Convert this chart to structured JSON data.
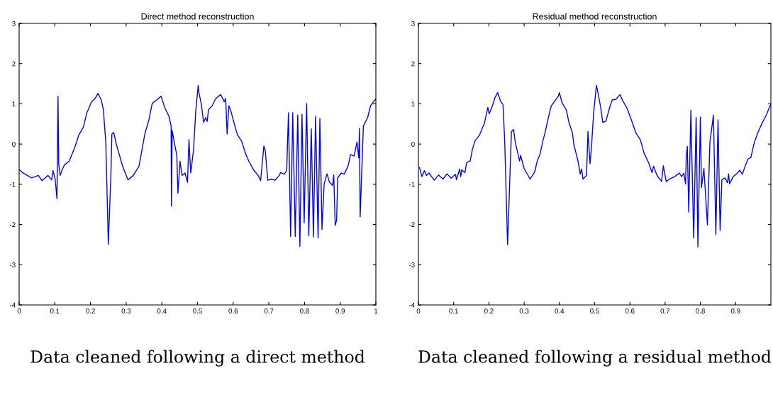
{
  "chart_data": [
    {
      "type": "line",
      "title": "Direct method reconstruction",
      "xlim": [
        0,
        1
      ],
      "ylim": [
        -4,
        3
      ],
      "xticks": [
        0,
        0.1,
        0.2,
        0.3,
        0.4,
        0.5,
        0.6,
        0.7,
        0.8,
        0.9,
        1
      ],
      "yticks": [
        -4,
        -3,
        -2,
        -1,
        0,
        1,
        2,
        3
      ],
      "grid": false,
      "legend": false,
      "annotations": [
        "Data cleaned following a direct method"
      ],
      "series": [
        {
          "color": "#0000ff",
          "x": [
            0.001,
            0.011,
            0.035,
            0.054,
            0.064,
            0.081,
            0.091,
            0.095,
            0.101,
            0.106,
            0.109,
            0.111,
            0.115,
            0.122,
            0.127,
            0.14,
            0.147,
            0.157,
            0.167,
            0.18,
            0.19,
            0.203,
            0.213,
            0.221,
            0.23,
            0.236,
            0.243,
            0.25,
            0.257,
            0.26,
            0.265,
            0.273,
            0.29,
            0.305,
            0.32,
            0.336,
            0.353,
            0.363,
            0.373,
            0.386,
            0.398,
            0.409,
            0.42,
            0.426,
            0.427,
            0.429,
            0.435,
            0.442,
            0.445,
            0.451,
            0.457,
            0.465,
            0.472,
            0.476,
            0.481,
            0.489,
            0.495,
            0.502,
            0.504,
            0.511,
            0.517,
            0.523,
            0.527,
            0.531,
            0.541,
            0.551,
            0.565,
            0.575,
            0.579,
            0.583,
            0.588,
            0.594,
            0.601,
            0.612,
            0.624,
            0.634,
            0.644,
            0.657,
            0.67,
            0.677,
            0.686,
            0.69,
            0.697,
            0.707,
            0.717,
            0.729,
            0.733,
            0.743,
            0.75,
            0.755,
            0.761,
            0.767,
            0.774,
            0.781,
            0.787,
            0.793,
            0.799,
            0.806,
            0.812,
            0.819,
            0.825,
            0.831,
            0.838,
            0.843,
            0.849,
            0.855,
            0.863,
            0.87,
            0.879,
            0.882,
            0.886,
            0.89,
            0.893,
            0.903,
            0.911,
            0.922,
            0.929,
            0.939,
            0.947,
            0.952,
            0.954,
            0.956,
            0.965,
            0.977,
            0.985,
            0.995,
            1.0
          ],
          "values": [
            -0.64,
            -0.72,
            -0.84,
            -0.78,
            -0.91,
            -0.78,
            -0.89,
            -0.66,
            -0.87,
            -1.36,
            1.19,
            -0.49,
            -0.78,
            -0.61,
            -0.52,
            -0.43,
            -0.28,
            -0.06,
            0.22,
            0.42,
            0.78,
            1.05,
            1.13,
            1.26,
            1.1,
            0.86,
            0.04,
            -2.49,
            -0.84,
            0.25,
            0.29,
            -0.02,
            -0.55,
            -0.89,
            -0.78,
            -0.55,
            0.28,
            0.57,
            1.01,
            1.1,
            1.19,
            0.89,
            0.69,
            0.45,
            -1.54,
            0.34,
            0.04,
            -0.28,
            -1.22,
            -0.43,
            -0.78,
            -0.72,
            -0.95,
            0.11,
            -0.72,
            -0.14,
            0.81,
            1.46,
            1.28,
            0.98,
            0.54,
            0.66,
            0.56,
            0.86,
            0.95,
            1.13,
            1.23,
            1.05,
            1.13,
            0.25,
            0.95,
            0.81,
            0.57,
            0.23,
            0.07,
            -0.22,
            -0.43,
            -0.64,
            -0.78,
            -0.91,
            -0.05,
            -0.16,
            -0.9,
            -0.87,
            -0.9,
            -0.78,
            -0.71,
            -0.75,
            -0.66,
            0.78,
            -2.3,
            0.78,
            -2.3,
            0.72,
            -2.54,
            0.74,
            -1.96,
            1.01,
            -2.28,
            0.38,
            -2.31,
            0.69,
            -2.34,
            0.64,
            -2.12,
            -0.99,
            -0.74,
            -0.95,
            -1.03,
            -0.77,
            -2.02,
            -1.89,
            -0.84,
            -0.72,
            -0.75,
            -0.55,
            -0.26,
            -0.3,
            0.05,
            -0.34,
            0.39,
            -1.81,
            0.45,
            0.66,
            0.95,
            1.07,
            1.12
          ]
        }
      ]
    },
    {
      "type": "line",
      "title": "Residual method reconstruction",
      "xlim": [
        0,
        1
      ],
      "ylim": [
        -4,
        3
      ],
      "xticks": [
        0,
        0.1,
        0.2,
        0.3,
        0.4,
        0.5,
        0.6,
        0.7,
        0.8,
        0.9
      ],
      "yticks": [
        -4,
        -3,
        -2,
        -1,
        0,
        1,
        2,
        3
      ],
      "grid": false,
      "legend": false,
      "annotations": [
        "Data cleaned following a residual method"
      ],
      "series": [
        {
          "color": "#0000ff",
          "x": [
            0.003,
            0.01,
            0.017,
            0.023,
            0.03,
            0.045,
            0.057,
            0.07,
            0.081,
            0.093,
            0.105,
            0.108,
            0.117,
            0.12,
            0.123,
            0.132,
            0.137,
            0.147,
            0.153,
            0.16,
            0.173,
            0.187,
            0.197,
            0.201,
            0.21,
            0.217,
            0.225,
            0.233,
            0.24,
            0.245,
            0.253,
            0.26,
            0.264,
            0.27,
            0.275,
            0.287,
            0.29,
            0.3,
            0.317,
            0.33,
            0.337,
            0.345,
            0.353,
            0.36,
            0.368,
            0.377,
            0.387,
            0.397,
            0.4,
            0.407,
            0.42,
            0.427,
            0.437,
            0.441,
            0.453,
            0.459,
            0.463,
            0.467,
            0.477,
            0.481,
            0.487,
            0.491,
            0.497,
            0.505,
            0.508,
            0.517,
            0.523,
            0.532,
            0.543,
            0.55,
            0.56,
            0.572,
            0.58,
            0.592,
            0.603,
            0.617,
            0.63,
            0.64,
            0.653,
            0.663,
            0.667,
            0.677,
            0.69,
            0.695,
            0.703,
            0.713,
            0.727,
            0.74,
            0.747,
            0.753,
            0.758,
            0.76,
            0.763,
            0.767,
            0.773,
            0.781,
            0.788,
            0.793,
            0.8,
            0.803,
            0.81,
            0.82,
            0.827,
            0.837,
            0.844,
            0.85,
            0.856,
            0.861,
            0.87,
            0.877,
            0.88,
            0.883,
            0.893,
            0.903,
            0.912,
            0.919,
            0.927,
            0.935,
            0.943,
            0.953,
            0.963,
            0.973,
            0.987,
            0.999
          ],
          "values": [
            -0.58,
            -0.81,
            -0.66,
            -0.78,
            -0.72,
            -0.9,
            -0.77,
            -0.87,
            -0.74,
            -0.85,
            -0.75,
            -0.89,
            -0.62,
            -0.81,
            -0.64,
            -0.71,
            -0.46,
            -0.42,
            -0.14,
            0.07,
            0.22,
            0.51,
            0.91,
            0.75,
            0.95,
            1.15,
            1.28,
            1.07,
            0.98,
            0.04,
            -2.5,
            -0.69,
            0.31,
            0.36,
            0.04,
            -0.42,
            -0.28,
            -0.61,
            -0.87,
            -0.69,
            -0.43,
            -0.25,
            0.07,
            0.31,
            0.63,
            0.95,
            1.07,
            1.19,
            1.28,
            1.04,
            0.84,
            0.54,
            0.28,
            -0.01,
            -0.43,
            -0.75,
            -0.62,
            -0.87,
            -0.78,
            0.31,
            -0.49,
            -0.08,
            0.75,
            1.46,
            1.34,
            0.92,
            0.54,
            0.57,
            0.92,
            1.1,
            1.11,
            1.23,
            1.07,
            0.89,
            0.63,
            0.28,
            0.1,
            -0.22,
            -0.46,
            -0.71,
            -0.55,
            -0.78,
            -0.93,
            -0.54,
            -0.93,
            -0.87,
            -0.81,
            -0.72,
            -0.81,
            -0.72,
            -0.99,
            -0.31,
            -0.06,
            -1.69,
            0.84,
            -2.34,
            0.66,
            -2.56,
            0.67,
            -1.08,
            -0.61,
            -2.01,
            0.04,
            0.72,
            -2.25,
            0.6,
            -2.15,
            -0.89,
            -0.84,
            -0.96,
            -0.74,
            -0.99,
            -0.81,
            -0.74,
            -0.65,
            -0.75,
            -0.55,
            -0.37,
            -0.34,
            0.04,
            0.28,
            0.48,
            0.72,
            0.98
          ]
        }
      ]
    }
  ]
}
